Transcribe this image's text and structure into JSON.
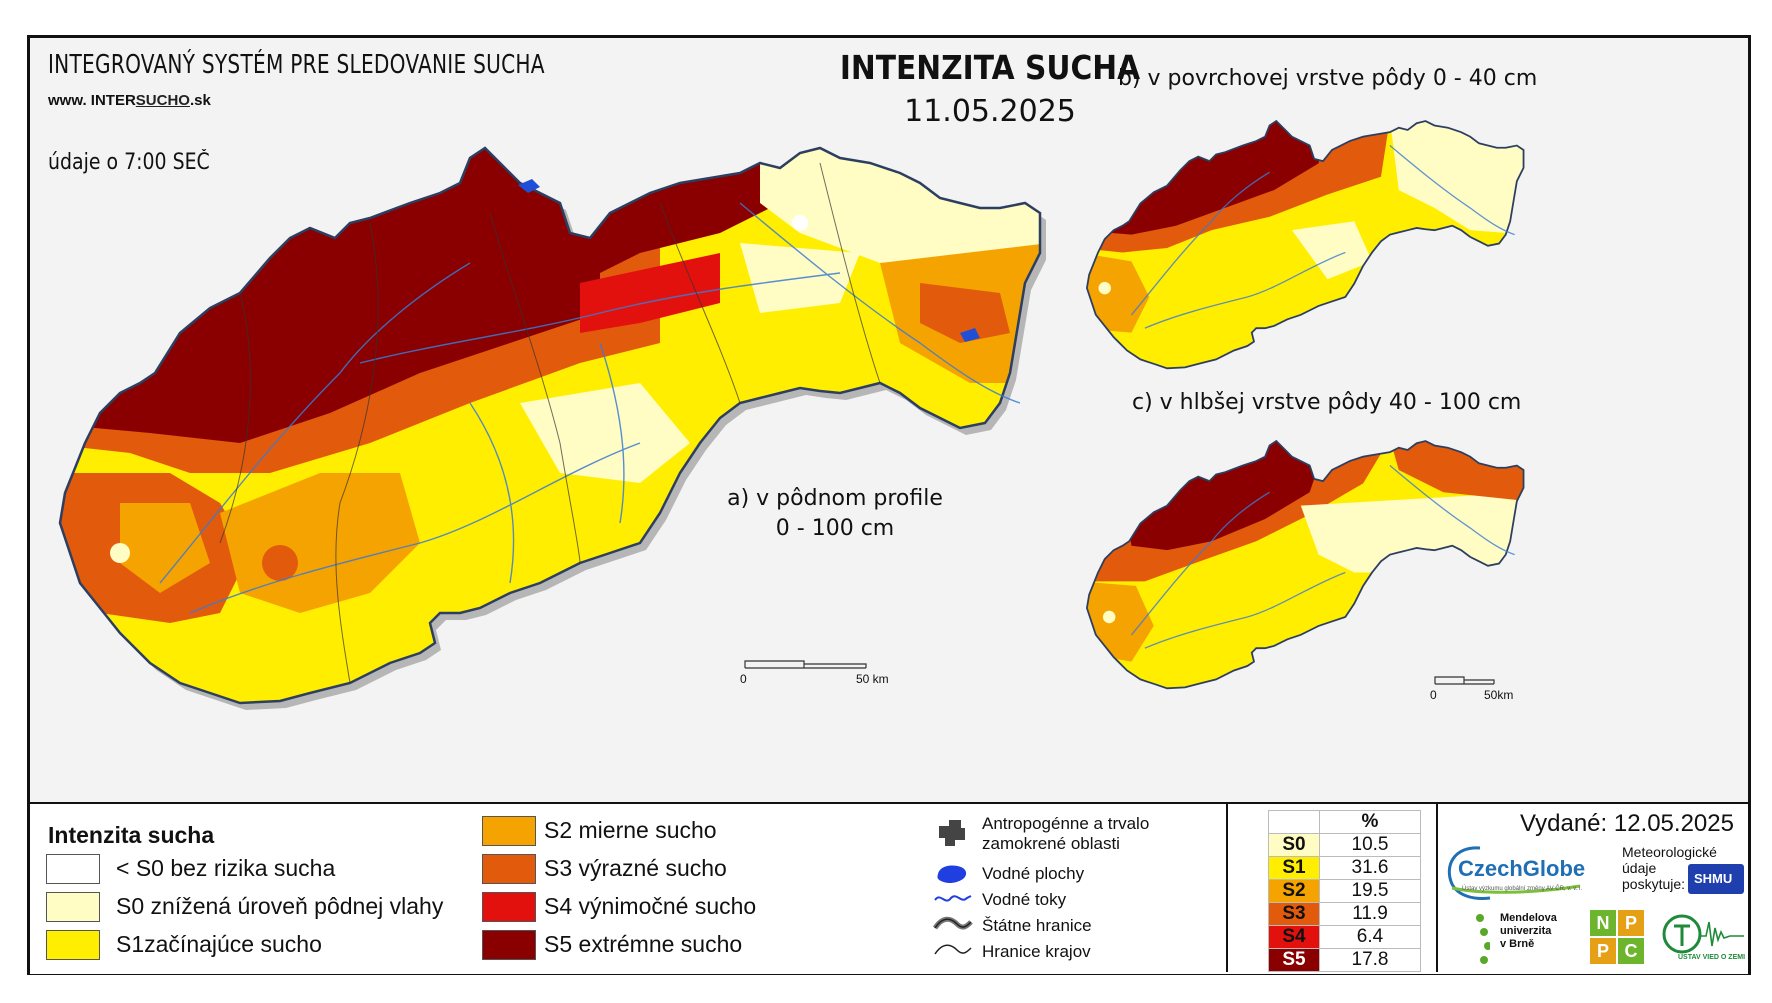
{
  "header": {
    "system_title": "INTEGROVANÝ SYSTÉM PRE SLEDOVANIE SUCHA",
    "website_prefix": "www. INTER",
    "website_highlight": "SUCHO",
    "website_suffix": ".sk",
    "data_time": "údaje o 7:00 SEČ",
    "main_title": "INTENZITA SUCHA",
    "date": "11.05.2025"
  },
  "maps": {
    "a_label_line1": "a) v pôdnom profile",
    "a_label_line2": "0 - 100 cm",
    "b_label": "b) v povrchovej vrstve pôdy 0 - 40 cm",
    "c_label": "c) v hlbšej vrstve pôdy 40 - 100 cm",
    "scale_a_start": "0",
    "scale_a_end": "50 km",
    "scale_c_start": "0",
    "scale_c_end": "50km"
  },
  "legend": {
    "title": "Intenzita sucha",
    "classes": [
      {
        "label": "< S0 bez rizika sucha",
        "color": "#ffffff"
      },
      {
        "label": "S0 znížená úroveň pôdnej vlahy",
        "color": "#fffcc4"
      },
      {
        "label": "S1začínajúce sucho",
        "color": "#ffee00"
      },
      {
        "label": "S2 mierne sucho",
        "color": "#f5a300"
      },
      {
        "label": "S3 výrazné sucho",
        "color": "#e25a0c"
      },
      {
        "label": "S4 výnimočné sucho",
        "color": "#e3110e"
      },
      {
        "label": "S5 extrémne sucho",
        "color": "#8a0000"
      }
    ],
    "symbols": [
      {
        "label_line1": "Antropogénne a trvalo",
        "label_line2": "zamokrené oblasti",
        "icon": "urban-area-icon"
      },
      {
        "label_line1": "Vodné plochy",
        "label_line2": "",
        "icon": "water-body-icon"
      },
      {
        "label_line1": "Vodné toky",
        "label_line2": "",
        "icon": "water-stream-icon"
      },
      {
        "label_line1": "Štátne hranice",
        "label_line2": "",
        "icon": "state-border-icon"
      },
      {
        "label_line1": "Hranice krajov",
        "label_line2": "",
        "icon": "region-border-icon"
      }
    ]
  },
  "percent_table": {
    "header": "%",
    "rows": [
      {
        "class": "S0",
        "value": "10.5",
        "color": "#fffcc4"
      },
      {
        "class": "S1",
        "value": "31.6",
        "color": "#ffee00"
      },
      {
        "class": "S2",
        "value": "19.5",
        "color": "#f5a300"
      },
      {
        "class": "S3",
        "value": "11.9",
        "color": "#e25a0c"
      },
      {
        "class": "S4",
        "value": "6.4",
        "color": "#e3110e"
      },
      {
        "class": "S5",
        "value": "17.8",
        "color": "#8a0000"
      }
    ]
  },
  "credits": {
    "issued": "Vydané: 12.05.2025",
    "czechglobe": "CzechGlobe",
    "czechglobe_sub": "Ústav výzkumu globální změny AV ČR, v. v. i.",
    "meteo_line1": "Meteorologické",
    "meteo_line2": "údaje",
    "meteo_line3": "poskytuje:",
    "shmu": "SHMU",
    "mendel_line1": "Mendelova",
    "mendel_line2": "univerzita",
    "mendel_line3": "v Brně",
    "npc_letters": [
      "N",
      "P",
      "P",
      "C"
    ],
    "uvz": "ÚSTAV VIED O ZEMI"
  }
}
